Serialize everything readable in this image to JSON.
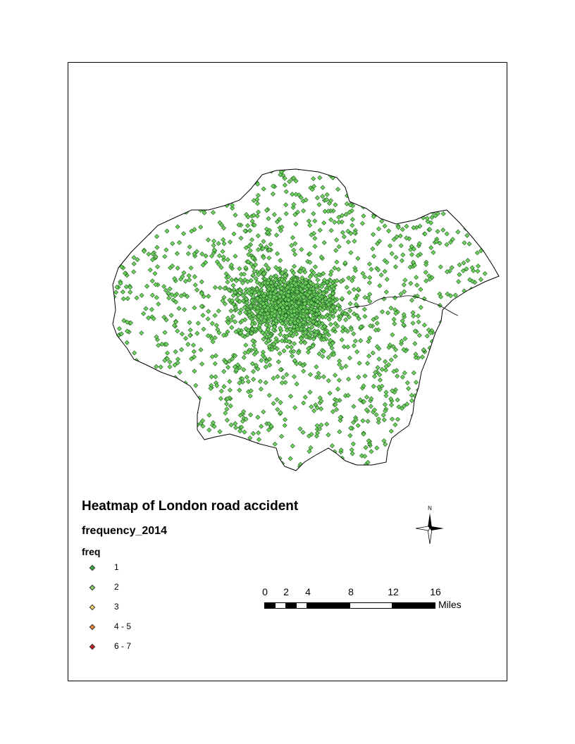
{
  "map": {
    "title": "Heatmap of London road accident",
    "subtitle": "frequency_2014",
    "legend_field": "freq",
    "legend": [
      {
        "label": "1",
        "color": "#3cb043"
      },
      {
        "label": "2",
        "color": "#8fd16a"
      },
      {
        "label": "3",
        "color": "#f3d26a"
      },
      {
        "label": "4 - 5",
        "color": "#f0843a"
      },
      {
        "label": "6 - 7",
        "color": "#c81e1e"
      }
    ],
    "north_label": "N",
    "scale": {
      "ticks": [
        "0",
        "2",
        "4",
        "8",
        "12",
        "16"
      ],
      "unit": "Miles"
    },
    "colors": {
      "point_fill": "#6fcf5f",
      "point_stroke": "#1f5f1f",
      "boundary": "#000000"
    }
  }
}
